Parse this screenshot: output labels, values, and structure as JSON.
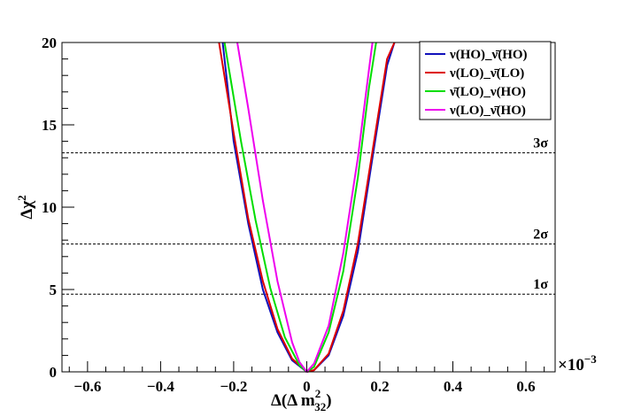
{
  "chart_data": {
    "type": "line",
    "xlabel_main": "Δ(Δ m",
    "xlabel_sup": "2",
    "xlabel_sub": "32",
    "xlabel_close": ")",
    "ylabel_main": "Δχ",
    "ylabel_sup": "2",
    "x_multiplier_base": "×10",
    "x_multiplier_exp": "−3",
    "xlim": [
      -0.67,
      0.68
    ],
    "ylim": [
      0,
      20
    ],
    "xticks": [
      -0.6,
      -0.4,
      -0.2,
      0,
      0.2,
      0.4,
      0.6
    ],
    "xtick_labels": [
      "−0.6",
      "−0.4",
      "−0.2",
      "0",
      "0.2",
      "0.4",
      "0.6"
    ],
    "yticks": [
      0,
      5,
      10,
      15,
      20
    ],
    "ytick_labels": [
      "0",
      "5",
      "10",
      "15",
      "20"
    ],
    "levels": [
      {
        "label": "1σ",
        "y": 4.72
      },
      {
        "label": "2σ",
        "y": 7.76
      },
      {
        "label": "3σ",
        "y": 13.3
      }
    ],
    "legend_position": "top-right",
    "series": [
      {
        "name": "ν(HO)_ν̄(HO)",
        "color": "#1111bb",
        "x": [
          -0.23,
          -0.2,
          -0.16,
          -0.12,
          -0.08,
          -0.04,
          0.0,
          0.02,
          0.06,
          0.1,
          0.14,
          0.18,
          0.22,
          0.24
        ],
        "y": [
          20,
          14.0,
          9.0,
          5.0,
          2.4,
          0.7,
          0.0,
          0.1,
          1.0,
          3.4,
          7.3,
          13.0,
          18.6,
          20
        ]
      },
      {
        "name": "ν(LO)_ν̄(LO)",
        "color": "#dd0000",
        "x": [
          -0.24,
          -0.2,
          -0.16,
          -0.12,
          -0.08,
          -0.04,
          0.0,
          0.02,
          0.06,
          0.1,
          0.14,
          0.18,
          0.22,
          0.24
        ],
        "y": [
          20,
          14.5,
          9.3,
          5.5,
          2.6,
          0.8,
          0.0,
          0.1,
          1.1,
          3.7,
          7.8,
          13.4,
          19.0,
          20
        ]
      },
      {
        "name": "ν̄(LO)_ν(HO)",
        "color": "#00dd00",
        "x": [
          -0.225,
          -0.18,
          -0.14,
          -0.1,
          -0.06,
          -0.02,
          0.0,
          0.02,
          0.06,
          0.1,
          0.14,
          0.17,
          0.19
        ],
        "y": [
          20,
          14.0,
          9.2,
          5.1,
          2.1,
          0.4,
          0.0,
          0.3,
          2.4,
          6.1,
          11.8,
          17.2,
          20
        ]
      },
      {
        "name": "ν(LO)_ν̄(HO)",
        "color": "#ee00ee",
        "x": [
          -0.19,
          -0.16,
          -0.12,
          -0.08,
          -0.04,
          -0.02,
          0.0,
          0.02,
          0.06,
          0.1,
          0.14,
          0.17,
          0.18
        ],
        "y": [
          20,
          16.0,
          10.4,
          5.5,
          1.8,
          0.6,
          0.0,
          0.5,
          2.8,
          7.2,
          13.0,
          18.3,
          20
        ]
      }
    ]
  }
}
